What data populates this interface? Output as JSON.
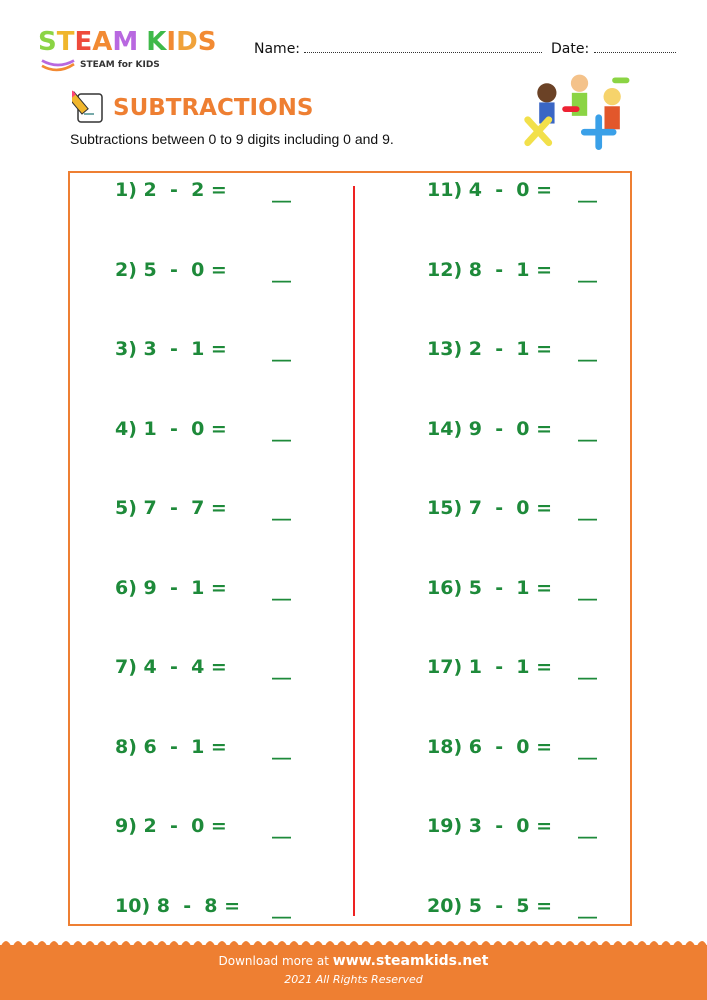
{
  "logo": {
    "text": "STEAM KIDS",
    "tagline": "STEAM for KIDS",
    "colors": [
      "#8bd444",
      "#f0b62c",
      "#ee4b3c",
      "#f28a33",
      "#b868e0",
      "#f28a33",
      "#3fb949",
      "#f28a33",
      "#f0a23a"
    ]
  },
  "header": {
    "name_label": "Name:",
    "date_label": "Date:"
  },
  "title": "SUBTRACTIONS",
  "description": "Subtractions between 0 to 9 digits including 0 and 9.",
  "colors": {
    "accent": "#ee7f32",
    "problem_text": "#1e8a3a",
    "divider": "#e22222"
  },
  "problems": {
    "left": [
      {
        "label": "1) 2  -  2 =",
        "blank": "__"
      },
      {
        "label": "2) 5  -  0 =",
        "blank": "__"
      },
      {
        "label": "3) 3  -  1 =",
        "blank": "__"
      },
      {
        "label": "4) 1  -  0 =",
        "blank": "__"
      },
      {
        "label": "5) 7  -  7 =",
        "blank": "__"
      },
      {
        "label": "6) 9  -  1 =",
        "blank": "__"
      },
      {
        "label": "7) 4  -  4 =",
        "blank": "__"
      },
      {
        "label": "8) 6  -  1 =",
        "blank": "__"
      },
      {
        "label": "9) 2  -  0 =",
        "blank": "__"
      },
      {
        "label": "10) 8  -  8 =",
        "blank": "__"
      }
    ],
    "right": [
      {
        "label": "11) 4  -  0 =",
        "blank": "__"
      },
      {
        "label": "12) 8  -  1 =",
        "blank": "__"
      },
      {
        "label": "13) 2  -  1 =",
        "blank": "__"
      },
      {
        "label": "14) 9  -  0 =",
        "blank": "__"
      },
      {
        "label": "15) 7  -  0 =",
        "blank": "__"
      },
      {
        "label": "16) 5  -  1 =",
        "blank": "__"
      },
      {
        "label": "17) 1  -  1 =",
        "blank": "__"
      },
      {
        "label": "18) 6  -  0 =",
        "blank": "__"
      },
      {
        "label": "19) 3  -  0 =",
        "blank": "__"
      },
      {
        "label": "20) 5  -  5 =",
        "blank": "__"
      }
    ]
  },
  "footer": {
    "download_text": "Download more at",
    "site": "www.steamkids.net",
    "copyright": "2021 All Rights Reserved"
  }
}
